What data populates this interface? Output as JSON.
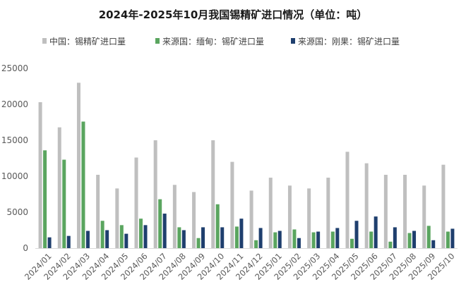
{
  "chart_data": {
    "type": "bar",
    "title": "2024年-2025年10月我国锡精矿进口情况（单位：吨）",
    "xlabel": "",
    "ylabel": "",
    "categories": [
      "2024/01",
      "2024/02",
      "2024/03",
      "2024/04",
      "2024/05",
      "2024/06",
      "2024/07",
      "2024/08",
      "2024/09",
      "2024/10",
      "2024/11",
      "2024/12",
      "2025/01",
      "2025/02",
      "2025/03",
      "2025/04",
      "2025/05",
      "2025/06",
      "2025/07",
      "2025/08",
      "2025/09",
      "2025/10"
    ],
    "series": [
      {
        "name": "中国：锡精矿进口量",
        "color": "#bfbfbf",
        "values": [
          20300,
          16800,
          23000,
          10200,
          8300,
          12600,
          15000,
          8800,
          7800,
          15000,
          12000,
          8000,
          9800,
          8700,
          8300,
          9800,
          13400,
          11800,
          10200,
          10200,
          8700,
          11600
        ]
      },
      {
        "name": "来源国：缅甸：锡矿进口量",
        "color": "#5aa55f",
        "values": [
          13600,
          12300,
          17600,
          3800,
          3200,
          4100,
          6800,
          2900,
          1400,
          6100,
          3000,
          1100,
          2200,
          2600,
          2200,
          2300,
          1300,
          2300,
          900,
          2100,
          3100,
          2300
        ]
      },
      {
        "name": "来源国：刚果：锡矿进口量",
        "color": "#1f3f6e",
        "values": [
          1500,
          1700,
          2400,
          2500,
          2000,
          3200,
          4800,
          2500,
          2900,
          2900,
          4100,
          2800,
          2400,
          1400,
          2300,
          2800,
          3800,
          4400,
          2900,
          2400,
          1100,
          2700
        ]
      }
    ],
    "ylim": [
      0,
      25000
    ],
    "yticks": [
      0,
      5000,
      10000,
      15000,
      20000,
      25000
    ],
    "grid": false,
    "legend_position": "top"
  }
}
